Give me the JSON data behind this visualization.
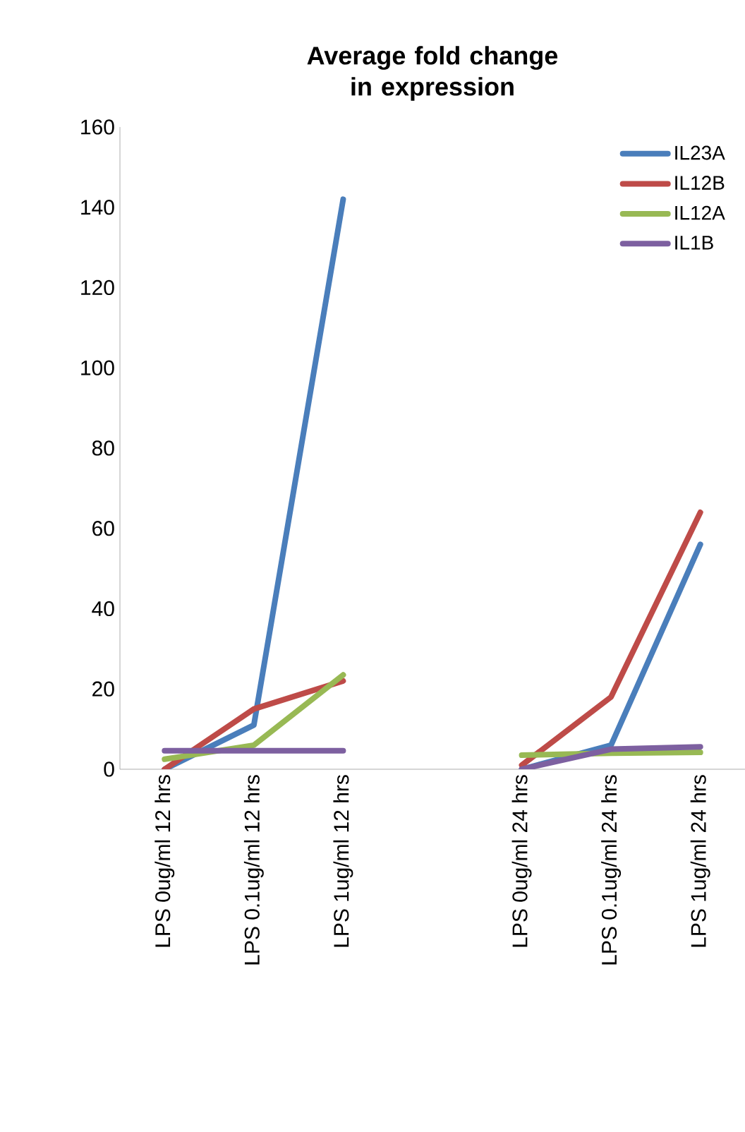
{
  "chart_data": {
    "type": "line",
    "title": "Average fold change in expression",
    "categories": [
      "LPS 0ug/ml 12 hrs",
      "LPS 0.1ug/ml 12 hrs",
      "LPS 1ug/ml 12 hrs",
      null,
      "LPS 0ug/ml 24 hrs",
      "LPS 0.1ug/ml 24 hrs",
      "LPS 1ug/ml 24 hrs"
    ],
    "series": [
      {
        "name": "IL23A",
        "color": "#4a7ebb",
        "values": [
          0,
          11,
          142,
          null,
          0,
          6,
          56
        ]
      },
      {
        "name": "IL12B",
        "color": "#be4b48",
        "values": [
          0,
          15,
          22,
          null,
          1,
          18,
          64
        ]
      },
      {
        "name": "IL12A",
        "color": "#98b954",
        "values": [
          2.5,
          6,
          23.5,
          null,
          3.5,
          4,
          4.2
        ]
      },
      {
        "name": "IL1B",
        "color": "#7d60a0",
        "values": [
          4.6,
          4.6,
          4.6,
          null,
          0,
          5,
          5.6
        ]
      }
    ],
    "ylim": [
      0,
      160
    ],
    "yticks": [
      0,
      20,
      40,
      60,
      80,
      100,
      120,
      140,
      160
    ],
    "grid": false,
    "legend": "top right",
    "marker": "none",
    "line_style": "solid"
  }
}
